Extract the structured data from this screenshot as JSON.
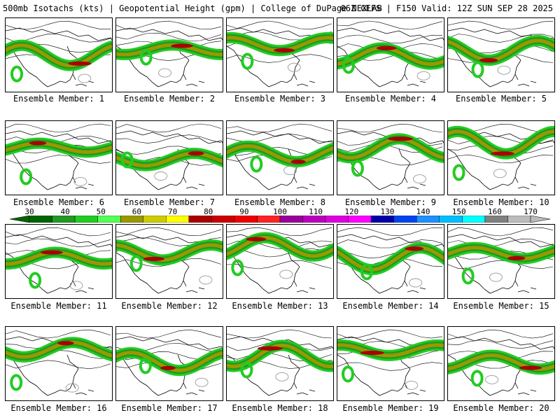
{
  "header": {
    "title": "500mb Isotachs (kts) | Geopotential Height (gpm) | College of DuPage NEXLAB",
    "run_info": "06Z GEFS | F150 Valid: 12Z SUN SEP 28 2025"
  },
  "colorbar": {
    "labels": [
      "30",
      "40",
      "50",
      "60",
      "70",
      "80",
      "90",
      "100",
      "110",
      "120",
      "130",
      "140",
      "150",
      "160",
      "170"
    ],
    "colors": [
      "#006400",
      "#229922",
      "#22cc22",
      "#55ff55",
      "#999900",
      "#cccc00",
      "#ffff00",
      "#aa0000",
      "#cc0000",
      "#ee0000",
      "#ff2222",
      "#990099",
      "#bb00bb",
      "#dd00dd",
      "#ff00ff",
      "#0000aa",
      "#0044ee",
      "#1e90ff",
      "#00bfff",
      "#00ffff",
      "#808080",
      "#bbbbbb"
    ]
  },
  "members": [
    {
      "label": "Ensemble Member: 1"
    },
    {
      "label": "Ensemble Member: 2"
    },
    {
      "label": "Ensemble Member: 3"
    },
    {
      "label": "Ensemble Member: 4"
    },
    {
      "label": "Ensemble Member: 5"
    },
    {
      "label": "Ensemble Member: 6"
    },
    {
      "label": "Ensemble Member: 7"
    },
    {
      "label": "Ensemble Member: 8"
    },
    {
      "label": "Ensemble Member: 9"
    },
    {
      "label": "Ensemble Member: 10"
    },
    {
      "label": "Ensemble Member: 11"
    },
    {
      "label": "Ensemble Member: 12"
    },
    {
      "label": "Ensemble Member: 13"
    },
    {
      "label": "Ensemble Member: 14"
    },
    {
      "label": "Ensemble Member: 15"
    },
    {
      "label": "Ensemble Member: 16"
    },
    {
      "label": "Ensemble Member: 17"
    },
    {
      "label": "Ensemble Member: 18"
    },
    {
      "label": "Ensemble Member: 19"
    },
    {
      "label": "Ensemble Member: 20"
    }
  ]
}
